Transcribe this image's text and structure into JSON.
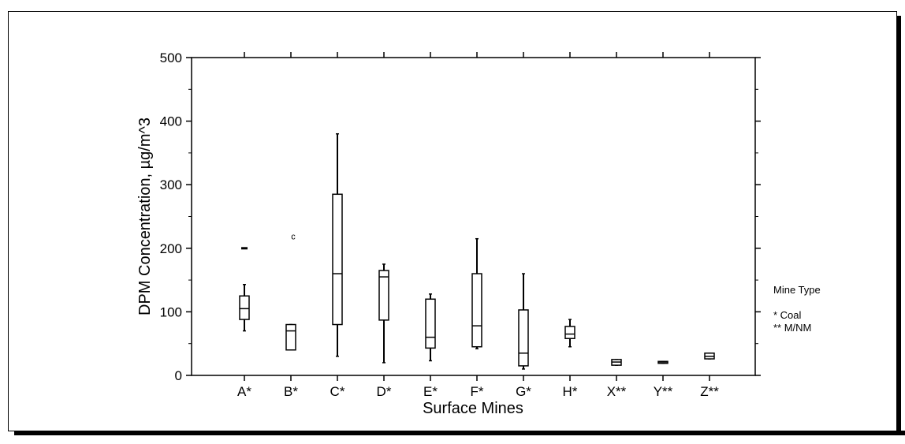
{
  "chart_data": {
    "type": "box",
    "xlabel": "Surface Mines",
    "ylabel": "DPM Concentration, µg/m^3",
    "ylim": [
      0,
      500
    ],
    "yticks": [
      0,
      100,
      200,
      300,
      400,
      500
    ],
    "categories": [
      "A*",
      "B*",
      "C*",
      "D*",
      "E*",
      "F*",
      "G*",
      "H*",
      "X**",
      "Y**",
      "Z**"
    ],
    "boxes": [
      {
        "category": "A*",
        "min": 70,
        "q1": 88,
        "median": 105,
        "q3": 125,
        "max": 143,
        "outliers": [
          200
        ],
        "outlier_marker": "x"
      },
      {
        "category": "B*",
        "min": 40,
        "q1": 40,
        "median": 70,
        "q3": 80,
        "max": 80,
        "outliers": [
          219
        ],
        "outlier_marker": "o"
      },
      {
        "category": "C*",
        "min": 30,
        "q1": 80,
        "median": 160,
        "q3": 285,
        "max": 380,
        "outliers": []
      },
      {
        "category": "D*",
        "min": 20,
        "q1": 87,
        "median": 155,
        "q3": 165,
        "max": 175,
        "outliers": []
      },
      {
        "category": "E*",
        "min": 23,
        "q1": 43,
        "median": 60,
        "q3": 120,
        "max": 128,
        "outliers": []
      },
      {
        "category": "F*",
        "min": 42,
        "q1": 45,
        "median": 78,
        "q3": 160,
        "max": 215,
        "outliers": []
      },
      {
        "category": "G*",
        "min": 10,
        "q1": 15,
        "median": 35,
        "q3": 103,
        "max": 160,
        "outliers": []
      },
      {
        "category": "H*",
        "min": 45,
        "q1": 58,
        "median": 65,
        "q3": 77,
        "max": 88,
        "outliers": []
      },
      {
        "category": "X**",
        "min": 16,
        "q1": 16,
        "median": 21,
        "q3": 25,
        "max": 25,
        "outliers": []
      },
      {
        "category": "Y**",
        "min": 19,
        "q1": 19,
        "median": 21,
        "q3": 22,
        "max": 22,
        "outliers": []
      },
      {
        "category": "Z**",
        "min": 26,
        "q1": 26,
        "median": 30,
        "q3": 35,
        "max": 35,
        "outliers": []
      }
    ],
    "legend": {
      "title": "Mine Type",
      "entries": [
        {
          "marker": "*",
          "label": "Coal"
        },
        {
          "marker": "**",
          "label": "M/NM"
        }
      ],
      "placement": "right"
    },
    "grid": false
  }
}
